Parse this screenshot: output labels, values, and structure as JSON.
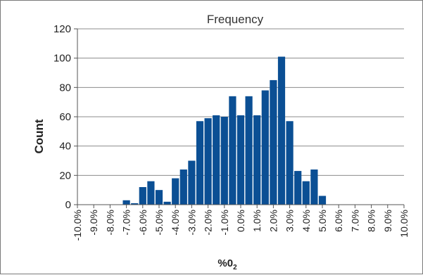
{
  "chart_data": {
    "type": "bar",
    "title": "Frequency",
    "xlabel": "%0",
    "xlabel_sub": "2",
    "ylabel": "Count",
    "ylim": [
      0,
      120
    ],
    "yticks": [
      0,
      20,
      40,
      60,
      80,
      100,
      120
    ],
    "grid": true,
    "legend": "none",
    "bar_color": "#0b4f94",
    "xlim": [
      -10,
      10
    ],
    "xtick_labels": [
      "-10.0%",
      "-9.0%",
      "-8.0%",
      "-7.0%",
      "-6.0%",
      "-5.0%",
      "-4.0%",
      "-3.0%",
      "-2.0%",
      "-1.0%",
      "0.0%",
      "1.0%",
      "2.0%",
      "3.0%",
      "4.0%",
      "5.0%",
      "6.0%",
      "7.0%",
      "8.0%",
      "9.0%",
      "10.0%"
    ],
    "x": [
      -7.0,
      -6.5,
      -6.0,
      -5.5,
      -5.0,
      -4.5,
      -4.0,
      -3.5,
      -3.0,
      -2.5,
      -2.0,
      -1.5,
      -1.0,
      -0.5,
      0.0,
      0.5,
      1.0,
      1.5,
      2.0,
      2.5,
      3.0,
      3.5,
      4.0,
      4.5,
      5.0
    ],
    "values": [
      3,
      1,
      12,
      16,
      10,
      2,
      18,
      24,
      30,
      57,
      59,
      61,
      60,
      74,
      61,
      74,
      61,
      78,
      85,
      101,
      57,
      23,
      16,
      24,
      6
    ]
  }
}
